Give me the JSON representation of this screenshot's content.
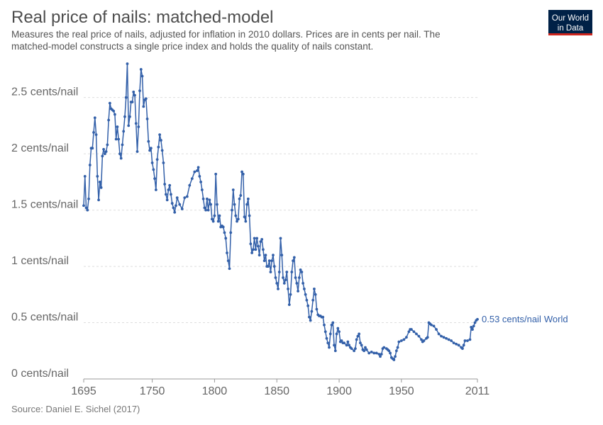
{
  "chart_data": {
    "type": "line",
    "title": "Real price of nails: matched-model",
    "subtitle": [
      "Measures the real price of nails, adjusted for inflation in 2010 dollars. Prices are in cents per nail. The",
      "matched-model constructs a single price index and holds the quality of nails constant."
    ],
    "source": "Source: Daniel E. Sichel (2017)",
    "logo": [
      "Our World",
      "in Data"
    ],
    "grid": true,
    "xlim": [
      1695,
      2011
    ],
    "ylim": [
      0,
      2.8
    ],
    "xticks": [
      1695,
      1750,
      1800,
      1850,
      1900,
      1950,
      2011
    ],
    "yticks": [
      {
        "value": 0,
        "label": "0 cents/nail"
      },
      {
        "value": 0.5,
        "label": "0.5 cents/nail"
      },
      {
        "value": 1,
        "label": "1 cents/nail"
      },
      {
        "value": 1.5,
        "label": "1.5 cents/nail"
      },
      {
        "value": 2,
        "label": "2 cents/nail"
      },
      {
        "value": 2.5,
        "label": "2.5 cents/nail"
      }
    ],
    "x": [
      1695,
      1696,
      1697,
      1698,
      1699,
      1700,
      1701,
      1702,
      1703,
      1704,
      1705,
      1706,
      1707,
      1708,
      1709,
      1710,
      1711,
      1712,
      1713,
      1714,
      1715,
      1716,
      1717,
      1718,
      1719,
      1720,
      1721,
      1722,
      1723,
      1724,
      1725,
      1726,
      1727,
      1728,
      1729,
      1730,
      1731,
      1732,
      1733,
      1734,
      1735,
      1736,
      1737,
      1738,
      1739,
      1740,
      1741,
      1742,
      1743,
      1744,
      1745,
      1746,
      1747,
      1748,
      1749,
      1750,
      1751,
      1752,
      1753,
      1754,
      1755,
      1756,
      1757,
      1758,
      1759,
      1760,
      1761,
      1762,
      1763,
      1764,
      1765,
      1766,
      1767,
      1768,
      1769,
      1770,
      1772,
      1774,
      1776,
      1778,
      1780,
      1782,
      1784,
      1786,
      1787,
      1788,
      1789,
      1790,
      1791,
      1792,
      1793,
      1794,
      1795,
      1796,
      1797,
      1798,
      1799,
      1800,
      1801,
      1802,
      1803,
      1804,
      1805,
      1806,
      1807,
      1808,
      1809,
      1810,
      1811,
      1812,
      1813,
      1814,
      1815,
      1816,
      1817,
      1818,
      1819,
      1820,
      1821,
      1822,
      1823,
      1824,
      1825,
      1826,
      1827,
      1828,
      1829,
      1830,
      1831,
      1832,
      1833,
      1834,
      1835,
      1836,
      1837,
      1838,
      1839,
      1840,
      1841,
      1842,
      1843,
      1844,
      1845,
      1846,
      1847,
      1848,
      1849,
      1850,
      1851,
      1852,
      1853,
      1854,
      1855,
      1856,
      1857,
      1858,
      1859,
      1860,
      1861,
      1862,
      1863,
      1864,
      1865,
      1866,
      1867,
      1868,
      1869,
      1870,
      1871,
      1872,
      1873,
      1874,
      1875,
      1876,
      1877,
      1878,
      1879,
      1880,
      1881,
      1882,
      1883,
      1884,
      1885,
      1886,
      1887,
      1888,
      1889,
      1890,
      1891,
      1892,
      1893,
      1894,
      1895,
      1896,
      1897,
      1898,
      1899,
      1900,
      1901,
      1902,
      1903,
      1904,
      1906,
      1907,
      1908,
      1909,
      1910,
      1912,
      1913,
      1914,
      1915,
      1916,
      1917,
      1918,
      1919,
      1920,
      1921,
      1922,
      1924,
      1926,
      1928,
      1930,
      1932,
      1933,
      1934,
      1935,
      1936,
      1938,
      1939,
      1940,
      1941,
      1942,
      1943,
      1944,
      1945,
      1946,
      1947,
      1948,
      1950,
      1952,
      1954,
      1956,
      1957,
      1958,
      1960,
      1962,
      1964,
      1966,
      1967,
      1968,
      1970,
      1971,
      1972,
      1973,
      1974,
      1976,
      1978,
      1980,
      1982,
      1984,
      1986,
      1988,
      1990,
      1992,
      1994,
      1996,
      1998,
      1999,
      2000,
      2001,
      2003,
      2005,
      2006,
      2007,
      2008,
      2009,
      2010,
      2011
    ],
    "series": [
      {
        "name": "World",
        "color": "#3360a9",
        "values": [
          1.54,
          1.8,
          1.52,
          1.5,
          1.6,
          1.9,
          2.05,
          2.05,
          2.19,
          2.32,
          2.17,
          1.8,
          1.59,
          1.75,
          1.7,
          1.98,
          2.04,
          2.0,
          2.02,
          2.08,
          2.3,
          2.45,
          2.4,
          2.39,
          2.38,
          2.35,
          2.13,
          2.24,
          2.13,
          2.0,
          1.96,
          2.08,
          2.2,
          2.33,
          2.5,
          2.8,
          2.25,
          2.33,
          2.46,
          2.46,
          2.55,
          2.52,
          2.27,
          2.02,
          2.24,
          2.56,
          2.75,
          2.69,
          2.42,
          2.48,
          2.49,
          2.31,
          2.11,
          2.03,
          2.05,
          1.92,
          1.86,
          1.78,
          1.68,
          1.95,
          2.06,
          2.17,
          2.12,
          2.03,
          1.92,
          1.73,
          1.64,
          1.59,
          1.68,
          1.72,
          1.64,
          1.56,
          1.52,
          1.48,
          1.54,
          1.61,
          1.55,
          1.51,
          1.61,
          1.62,
          1.72,
          1.78,
          1.84,
          1.85,
          1.88,
          1.8,
          1.75,
          1.68,
          1.6,
          1.52,
          1.5,
          1.6,
          1.5,
          1.59,
          1.55,
          1.42,
          1.4,
          1.45,
          1.82,
          1.55,
          1.4,
          1.45,
          1.35,
          1.36,
          1.35,
          1.3,
          1.25,
          1.12,
          1.05,
          0.98,
          1.3,
          1.5,
          1.68,
          1.55,
          1.45,
          1.4,
          1.42,
          1.6,
          1.63,
          1.84,
          1.82,
          1.44,
          1.4,
          1.55,
          1.6,
          1.45,
          1.2,
          1.12,
          1.15,
          1.25,
          1.15,
          1.25,
          1.18,
          1.1,
          1.22,
          1.24,
          1.15,
          1.05,
          1.1,
          1.0,
          1.0,
          1.05,
          0.95,
          1.05,
          1.1,
          1.0,
          0.9,
          0.85,
          0.8,
          0.95,
          1.25,
          1.1,
          0.9,
          0.85,
          0.88,
          0.95,
          0.8,
          0.66,
          0.75,
          0.95,
          1.05,
          1.08,
          0.9,
          0.85,
          0.78,
          0.9,
          0.97,
          0.95,
          0.85,
          0.8,
          0.75,
          0.7,
          0.65,
          0.55,
          0.52,
          0.6,
          0.7,
          0.8,
          0.75,
          0.62,
          0.57,
          0.56,
          0.56,
          0.55,
          0.55,
          0.48,
          0.42,
          0.36,
          0.32,
          0.28,
          0.4,
          0.48,
          0.5,
          0.3,
          0.25,
          0.4,
          0.45,
          0.42,
          0.33,
          0.34,
          0.32,
          0.32,
          0.3,
          0.33,
          0.3,
          0.28,
          0.27,
          0.25,
          0.27,
          0.35,
          0.38,
          0.4,
          0.32,
          0.3,
          0.26,
          0.25,
          0.28,
          0.26,
          0.23,
          0.24,
          0.23,
          0.23,
          0.22,
          0.2,
          0.22,
          0.27,
          0.28,
          0.27,
          0.26,
          0.25,
          0.23,
          0.19,
          0.18,
          0.17,
          0.2,
          0.25,
          0.28,
          0.33,
          0.34,
          0.35,
          0.37,
          0.42,
          0.44,
          0.44,
          0.42,
          0.4,
          0.38,
          0.35,
          0.33,
          0.34,
          0.36,
          0.37,
          0.5,
          0.49,
          0.48,
          0.47,
          0.44,
          0.4,
          0.38,
          0.37,
          0.36,
          0.35,
          0.34,
          0.32,
          0.31,
          0.3,
          0.28,
          0.27,
          0.3,
          0.34,
          0.34,
          0.35,
          0.46,
          0.44,
          0.47,
          0.5,
          0.52,
          0.53
        ],
        "value_labels": [
          null,
          null,
          null,
          null,
          null,
          null,
          null,
          null,
          null,
          null,
          null,
          null,
          null,
          null,
          null,
          null,
          null,
          null,
          null,
          null,
          null,
          null,
          null,
          null,
          null,
          null,
          null,
          null,
          null,
          null,
          null,
          null,
          null,
          null,
          null,
          null,
          null,
          null,
          null,
          null,
          null,
          null,
          null,
          null,
          null,
          null,
          null,
          null,
          null,
          null,
          null,
          null,
          null,
          null,
          null,
          null,
          null,
          null,
          null,
          null,
          null,
          null,
          null,
          null,
          null,
          null,
          null,
          null,
          null,
          null,
          null,
          null,
          null,
          null,
          null,
          null,
          null,
          null,
          null,
          null,
          null,
          null,
          null,
          null,
          null,
          null,
          null,
          null,
          null,
          null,
          null,
          null,
          null,
          null,
          null,
          null,
          null,
          null,
          null,
          null,
          null,
          null,
          null,
          null,
          null,
          null,
          null,
          null,
          null,
          null,
          null,
          null,
          null,
          null,
          null,
          null,
          null,
          null,
          null,
          null,
          null,
          null,
          null,
          null,
          null,
          null,
          null,
          null,
          null,
          null,
          null,
          null,
          null,
          null,
          null,
          null,
          null,
          null,
          null,
          null,
          null,
          null,
          null,
          null,
          null,
          null,
          null,
          null,
          null,
          null,
          null,
          null,
          null,
          null,
          null,
          null,
          null,
          null,
          null,
          null,
          null,
          null,
          null,
          null,
          null,
          null,
          null,
          null,
          null,
          null,
          null,
          null,
          null,
          null,
          null,
          null,
          null,
          null,
          null,
          null,
          null,
          null,
          null,
          null,
          null,
          null,
          null,
          null,
          null,
          null,
          null,
          null,
          null,
          null,
          null,
          null,
          null,
          null,
          null,
          null,
          null,
          null,
          null,
          null,
          null,
          null,
          null,
          null,
          null,
          null,
          null,
          null,
          null,
          null,
          null,
          null,
          null,
          null,
          null,
          null,
          null,
          null,
          null,
          null,
          null,
          null,
          null,
          null,
          null,
          null,
          null,
          null,
          null,
          null,
          null,
          null,
          null,
          null,
          null,
          null,
          null,
          null,
          null,
          null,
          null,
          null,
          null,
          null,
          null,
          null,
          null,
          null,
          null,
          null,
          null,
          null,
          null,
          null,
          null,
          null,
          null,
          null,
          null,
          null,
          null,
          null,
          null,
          null,
          null,
          null,
          null,
          null,
          null,
          null,
          null,
          null,
          null,
          "0.53 cents/nail"
        ]
      }
    ]
  }
}
